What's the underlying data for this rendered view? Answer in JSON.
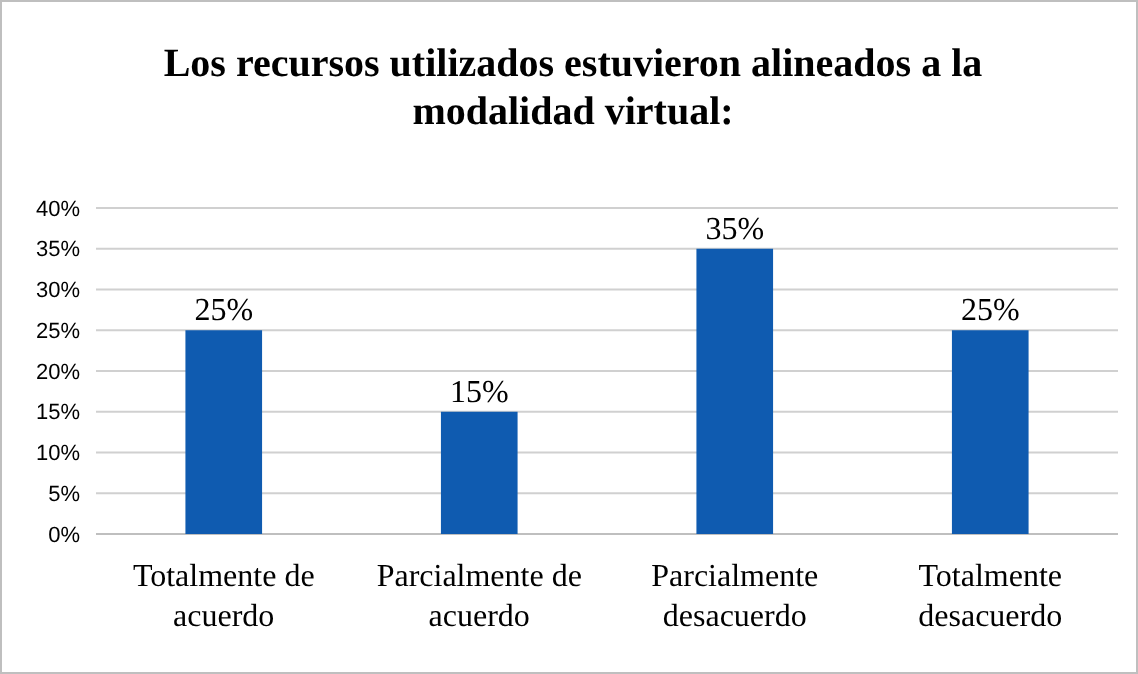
{
  "chart_data": {
    "type": "bar",
    "title": "Los recursos utilizados estuvieron alineados a la modalidad virtual:",
    "categories": [
      "Totalmente de acuerdo",
      "Parcialmente de acuerdo",
      "Parcialmente desacuerdo",
      "Totalmente desacuerdo"
    ],
    "values": [
      25,
      15,
      35,
      25
    ],
    "color": "#0f5bb0",
    "value_labels": [
      "25%",
      "15%",
      "35%",
      "25%"
    ],
    "ylim": [
      0,
      40
    ],
    "yticks": [
      {
        "value": 0,
        "label": "0%"
      },
      {
        "value": 5,
        "label": "5%"
      },
      {
        "value": 10,
        "label": "10%"
      },
      {
        "value": 15,
        "label": "15%"
      },
      {
        "value": 20,
        "label": "20%"
      },
      {
        "value": 25,
        "label": "25%"
      },
      {
        "value": 30,
        "label": "30%"
      },
      {
        "value": 35,
        "label": "35%"
      },
      {
        "value": 40,
        "label": "40%"
      }
    ],
    "grid": true
  }
}
